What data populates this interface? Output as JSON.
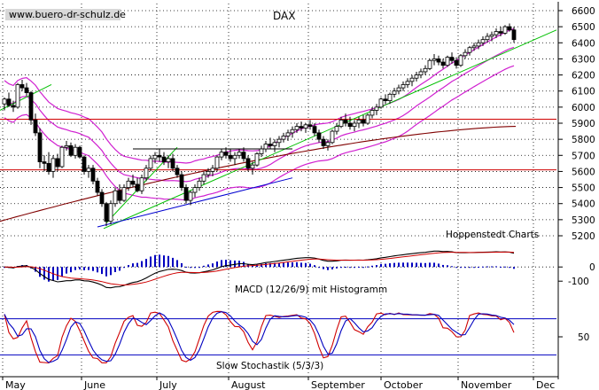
{
  "chart_data": {
    "type": "candlestick",
    "title": "DAX",
    "watermark": "www.buero-dr-schulz.de",
    "credit": "Hoppenstedt Charts",
    "x_labels": [
      "May",
      "June",
      "July",
      "August",
      "September",
      "October",
      "November",
      "Dec"
    ],
    "price_panel": {
      "ylim": [
        5150,
        6650
      ],
      "y_ticks": [
        5200,
        5300,
        5400,
        5500,
        5600,
        5700,
        5800,
        5900,
        6000,
        6100,
        6200,
        6300,
        6400,
        6500,
        6600
      ],
      "support_resistance": [
        5925,
        5610
      ],
      "long_ma_start": 5290,
      "long_ma_end": 5880,
      "bollinger_color": "#d020d0",
      "trend_lines": [
        {
          "name": "Uptrend main",
          "color": "#00c000",
          "from": [
            117,
            5245
          ],
          "to": [
            628,
            6480
          ]
        },
        {
          "name": "Uptrend steep",
          "color": "#00c000",
          "from": [
            120,
            5280
          ],
          "to": [
            200,
            5750
          ]
        },
        {
          "name": "Uptrend short",
          "color": "#00c000",
          "from": [
            0,
            5980
          ],
          "to": [
            58,
            6140
          ]
        },
        {
          "name": "Support",
          "color": "#0000d0",
          "from": [
            110,
            5255
          ],
          "to": [
            330,
            5560
          ]
        },
        {
          "name": "Range top",
          "color": "#000000",
          "from": [
            150,
            5740
          ],
          "to": [
            330,
            5740
          ]
        }
      ],
      "candles": [
        [
          5,
          6020,
          6060,
          5980,
          6050
        ],
        [
          10,
          6050,
          6090,
          6000,
          6010
        ],
        [
          15,
          6010,
          6040,
          5970,
          6000
        ],
        [
          20,
          6000,
          6150,
          5990,
          6140
        ],
        [
          25,
          6140,
          6170,
          6100,
          6120
        ],
        [
          30,
          6120,
          6150,
          6070,
          6090
        ],
        [
          35,
          6090,
          6100,
          5890,
          5920
        ],
        [
          40,
          5920,
          5960,
          5820,
          5840
        ],
        [
          45,
          5840,
          5870,
          5620,
          5660
        ],
        [
          50,
          5660,
          5700,
          5600,
          5650
        ],
        [
          55,
          5650,
          5720,
          5580,
          5600
        ],
        [
          60,
          5600,
          5700,
          5560,
          5680
        ],
        [
          65,
          5680,
          5710,
          5600,
          5630
        ],
        [
          70,
          5630,
          5760,
          5620,
          5750
        ],
        [
          75,
          5750,
          5790,
          5730,
          5760
        ],
        [
          80,
          5760,
          5780,
          5690,
          5700
        ],
        [
          85,
          5700,
          5770,
          5680,
          5750
        ],
        [
          90,
          5750,
          5760,
          5680,
          5690
        ],
        [
          95,
          5690,
          5700,
          5580,
          5600
        ],
        [
          100,
          5600,
          5640,
          5560,
          5620
        ],
        [
          105,
          5620,
          5640,
          5520,
          5540
        ],
        [
          110,
          5540,
          5560,
          5450,
          5470
        ],
        [
          115,
          5470,
          5490,
          5380,
          5400
        ],
        [
          120,
          5400,
          5410,
          5260,
          5290
        ],
        [
          125,
          5290,
          5420,
          5270,
          5400
        ],
        [
          130,
          5400,
          5500,
          5380,
          5480
        ],
        [
          135,
          5480,
          5520,
          5400,
          5420
        ],
        [
          140,
          5420,
          5520,
          5410,
          5500
        ],
        [
          145,
          5500,
          5560,
          5480,
          5540
        ],
        [
          150,
          5540,
          5580,
          5500,
          5520
        ],
        [
          155,
          5520,
          5560,
          5470,
          5480
        ],
        [
          160,
          5480,
          5580,
          5460,
          5560
        ],
        [
          165,
          5560,
          5640,
          5540,
          5620
        ],
        [
          170,
          5620,
          5700,
          5600,
          5680
        ],
        [
          175,
          5680,
          5720,
          5650,
          5700
        ],
        [
          180,
          5700,
          5740,
          5660,
          5690
        ],
        [
          185,
          5690,
          5720,
          5640,
          5660
        ],
        [
          190,
          5660,
          5700,
          5620,
          5680
        ],
        [
          195,
          5680,
          5710,
          5600,
          5620
        ],
        [
          200,
          5620,
          5640,
          5560,
          5580
        ],
        [
          205,
          5580,
          5600,
          5480,
          5500
        ],
        [
          210,
          5500,
          5520,
          5400,
          5420
        ],
        [
          215,
          5420,
          5480,
          5390,
          5470
        ],
        [
          220,
          5470,
          5520,
          5440,
          5500
        ],
        [
          225,
          5500,
          5560,
          5480,
          5540
        ],
        [
          230,
          5540,
          5600,
          5520,
          5580
        ],
        [
          235,
          5580,
          5620,
          5560,
          5600
        ],
        [
          240,
          5600,
          5640,
          5570,
          5620
        ],
        [
          245,
          5620,
          5700,
          5600,
          5690
        ],
        [
          250,
          5690,
          5740,
          5670,
          5720
        ],
        [
          255,
          5720,
          5750,
          5680,
          5700
        ],
        [
          260,
          5700,
          5740,
          5660,
          5680
        ],
        [
          265,
          5680,
          5720,
          5640,
          5700
        ],
        [
          270,
          5700,
          5740,
          5680,
          5720
        ],
        [
          275,
          5720,
          5750,
          5660,
          5680
        ],
        [
          280,
          5680,
          5700,
          5600,
          5620
        ],
        [
          285,
          5620,
          5660,
          5580,
          5640
        ],
        [
          290,
          5640,
          5720,
          5630,
          5710
        ],
        [
          295,
          5710,
          5760,
          5690,
          5740
        ],
        [
          300,
          5740,
          5790,
          5720,
          5770
        ],
        [
          305,
          5770,
          5810,
          5740,
          5760
        ],
        [
          310,
          5760,
          5800,
          5720,
          5780
        ],
        [
          315,
          5780,
          5820,
          5750,
          5800
        ],
        [
          320,
          5800,
          5840,
          5780,
          5820
        ],
        [
          325,
          5820,
          5860,
          5790,
          5840
        ],
        [
          330,
          5840,
          5880,
          5810,
          5860
        ],
        [
          335,
          5860,
          5900,
          5840,
          5880
        ],
        [
          340,
          5880,
          5910,
          5850,
          5870
        ],
        [
          345,
          5870,
          5900,
          5840,
          5890
        ],
        [
          350,
          5890,
          5920,
          5860,
          5880
        ],
        [
          355,
          5880,
          5900,
          5820,
          5840
        ],
        [
          360,
          5840,
          5860,
          5780,
          5800
        ],
        [
          365,
          5800,
          5820,
          5740,
          5760
        ],
        [
          370,
          5760,
          5800,
          5730,
          5780
        ],
        [
          375,
          5780,
          5860,
          5770,
          5850
        ],
        [
          380,
          5850,
          5900,
          5830,
          5880
        ],
        [
          385,
          5880,
          5940,
          5870,
          5920
        ],
        [
          390,
          5920,
          5960,
          5880,
          5900
        ],
        [
          395,
          5900,
          5940,
          5860,
          5880
        ],
        [
          400,
          5880,
          5920,
          5850,
          5900
        ],
        [
          405,
          5900,
          5940,
          5870,
          5920
        ],
        [
          410,
          5920,
          5950,
          5880,
          5900
        ],
        [
          415,
          5900,
          5960,
          5890,
          5950
        ],
        [
          420,
          5950,
          6000,
          5930,
          5980
        ],
        [
          425,
          5980,
          6020,
          5950,
          6000
        ],
        [
          430,
          6000,
          6060,
          5990,
          6050
        ],
        [
          435,
          6050,
          6080,
          6020,
          6040
        ],
        [
          440,
          6040,
          6090,
          6020,
          6080
        ],
        [
          445,
          6080,
          6120,
          6060,
          6100
        ],
        [
          450,
          6100,
          6140,
          6080,
          6120
        ],
        [
          455,
          6120,
          6160,
          6100,
          6140
        ],
        [
          460,
          6140,
          6180,
          6120,
          6160
        ],
        [
          465,
          6160,
          6200,
          6130,
          6180
        ],
        [
          470,
          6180,
          6220,
          6160,
          6200
        ],
        [
          475,
          6200,
          6240,
          6180,
          6220
        ],
        [
          480,
          6220,
          6260,
          6200,
          6240
        ],
        [
          485,
          6240,
          6300,
          6230,
          6290
        ],
        [
          490,
          6290,
          6330,
          6260,
          6300
        ],
        [
          495,
          6300,
          6320,
          6260,
          6280
        ],
        [
          500,
          6280,
          6300,
          6240,
          6260
        ],
        [
          505,
          6260,
          6320,
          6250,
          6310
        ],
        [
          510,
          6310,
          6340,
          6270,
          6290
        ],
        [
          515,
          6290,
          6310,
          6240,
          6260
        ],
        [
          520,
          6260,
          6330,
          6250,
          6320
        ],
        [
          525,
          6320,
          6360,
          6300,
          6340
        ],
        [
          530,
          6340,
          6380,
          6320,
          6370
        ],
        [
          535,
          6370,
          6400,
          6350,
          6380
        ],
        [
          540,
          6380,
          6420,
          6360,
          6400
        ],
        [
          545,
          6400,
          6440,
          6380,
          6420
        ],
        [
          550,
          6420,
          6460,
          6400,
          6440
        ],
        [
          555,
          6440,
          6470,
          6410,
          6450
        ],
        [
          560,
          6450,
          6490,
          6430,
          6470
        ],
        [
          565,
          6470,
          6500,
          6440,
          6460
        ],
        [
          570,
          6460,
          6510,
          6450,
          6500
        ],
        [
          575,
          6500,
          6520,
          6470,
          6480
        ],
        [
          580,
          6480,
          6500,
          6400,
          6420
        ]
      ]
    },
    "macd_panel": {
      "label": "MACD (12/26/9) mit Histogramm",
      "ylim": [
        -180,
        120
      ],
      "y_ticks": [
        0,
        -100
      ]
    },
    "stoch_panel": {
      "label": "Slow Stochastik (5/3/3)",
      "ylim": [
        0,
        100
      ],
      "y_ticks": [
        50
      ],
      "levels": [
        80,
        20
      ]
    }
  }
}
